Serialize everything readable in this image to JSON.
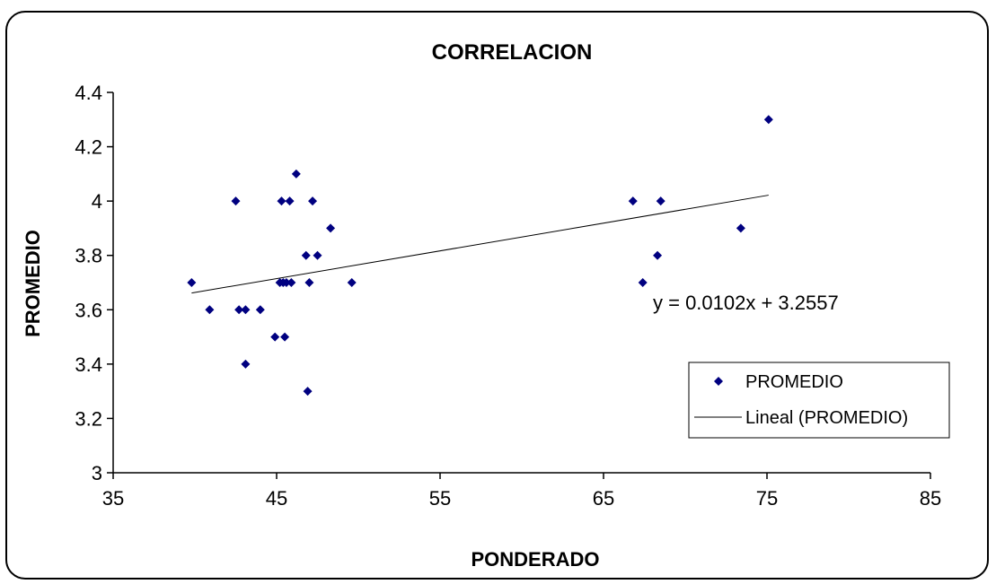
{
  "chart_data": {
    "type": "scatter",
    "title": "CORRELACION",
    "xlabel": "PONDERADO",
    "ylabel": "PROMEDIO",
    "xlim": [
      35,
      85
    ],
    "ylim": [
      3,
      4.4
    ],
    "xticks": [
      "35",
      "45",
      "55",
      "65",
      "75",
      "85"
    ],
    "yticks": [
      "3",
      "3.2",
      "3.4",
      "3.6",
      "3.8",
      "4",
      "4.2",
      "4.4"
    ],
    "grid": false,
    "legend_position": "bottom-right",
    "series": [
      {
        "name": "PROMEDIO",
        "marker": "diamond",
        "color": "#000080",
        "points": [
          [
            39.8,
            3.7
          ],
          [
            40.9,
            3.6
          ],
          [
            42.5,
            4.0
          ],
          [
            42.7,
            3.6
          ],
          [
            43.1,
            3.6
          ],
          [
            43.1,
            3.4
          ],
          [
            44.0,
            3.6
          ],
          [
            44.9,
            3.5
          ],
          [
            45.2,
            3.7
          ],
          [
            45.3,
            4.0
          ],
          [
            45.4,
            3.7
          ],
          [
            45.5,
            3.5
          ],
          [
            45.6,
            3.7
          ],
          [
            45.8,
            4.0
          ],
          [
            45.9,
            3.7
          ],
          [
            46.2,
            4.1
          ],
          [
            46.8,
            3.8
          ],
          [
            46.9,
            3.3
          ],
          [
            47.0,
            3.7
          ],
          [
            47.2,
            4.0
          ],
          [
            47.5,
            3.8
          ],
          [
            48.3,
            3.9
          ],
          [
            49.6,
            3.7
          ],
          [
            66.8,
            4.0
          ],
          [
            67.4,
            3.7
          ],
          [
            68.3,
            3.8
          ],
          [
            68.5,
            4.0
          ],
          [
            73.4,
            3.9
          ],
          [
            75.1,
            4.3
          ]
        ]
      },
      {
        "name": "Lineal (PROMEDIO)",
        "type": "line",
        "color": "#000000",
        "slope": 0.0102,
        "intercept": 3.2557,
        "x_range": [
          39.8,
          75.1
        ]
      }
    ],
    "annotations": [
      "y = 0.0102x + 3.2557"
    ]
  }
}
